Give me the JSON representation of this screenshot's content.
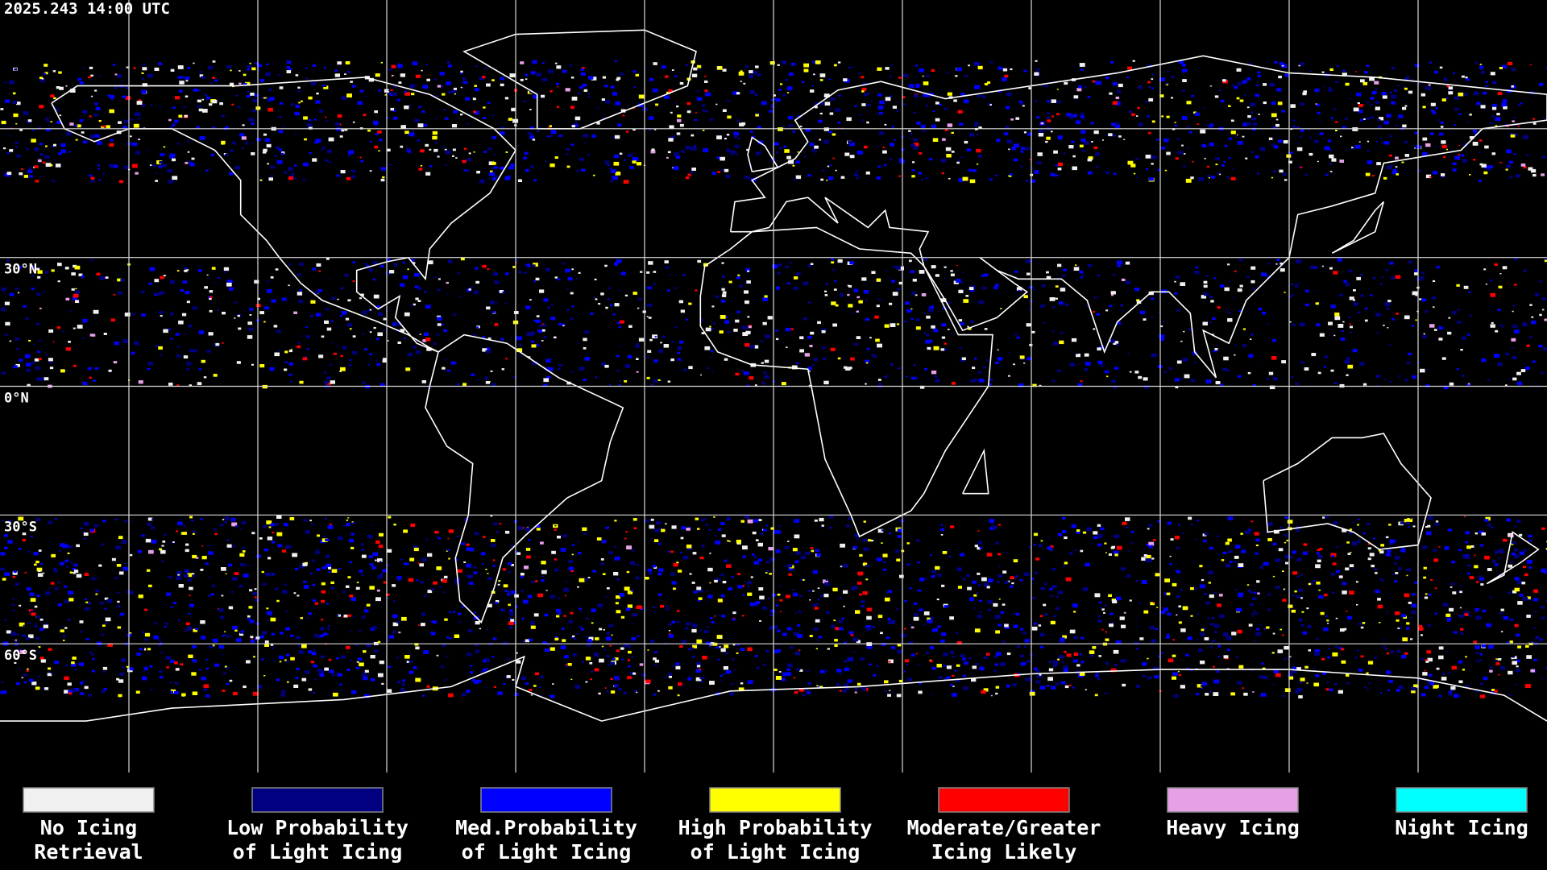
{
  "header": {
    "timestamp": "2025.243 14:00 UTC"
  },
  "lat_ticks": [
    {
      "value": 30,
      "label": "30°N"
    },
    {
      "value": 0,
      "label": "0°N"
    },
    {
      "value": -30,
      "label": "30°S"
    },
    {
      "value": -60,
      "label": "60°S"
    }
  ],
  "legend": {
    "items": [
      {
        "lines": [
          "No Icing",
          "Retrieval"
        ],
        "color": "#f0f0f0"
      },
      {
        "lines": [
          "Low Probability",
          "of Light Icing"
        ],
        "color": "#000080"
      },
      {
        "lines": [
          "Med.Probability",
          "of Light Icing"
        ],
        "color": "#0000ff"
      },
      {
        "lines": [
          "High Probability",
          "of Light Icing"
        ],
        "color": "#ffff00"
      },
      {
        "lines": [
          "Moderate/Greater",
          "Icing Likely"
        ],
        "color": "#ff0000"
      },
      {
        "lines": [
          "Heavy Icing"
        ],
        "color": "#e6a0e6"
      },
      {
        "lines": [
          "Night Icing"
        ],
        "color": "#00ffff"
      }
    ]
  }
}
